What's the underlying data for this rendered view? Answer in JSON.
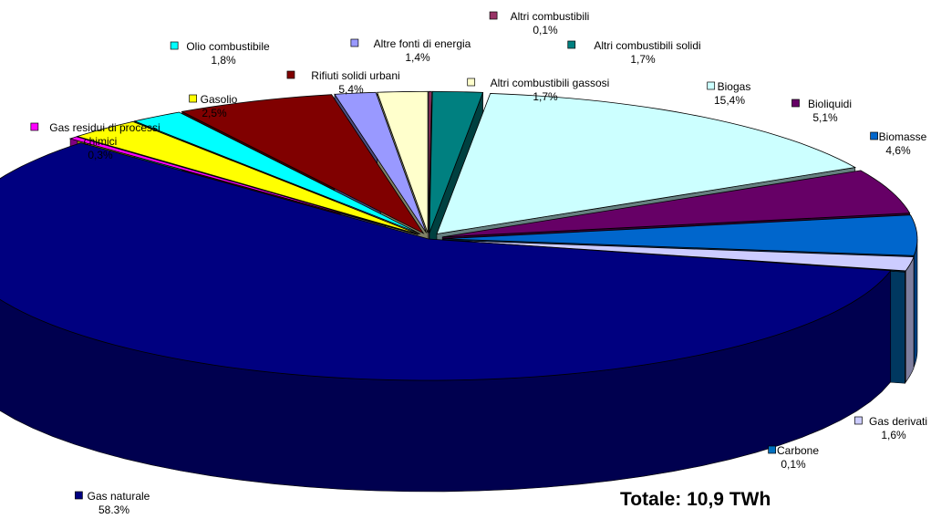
{
  "chart_data": {
    "type": "pie",
    "total_label": "Totale: 10,9 TWh",
    "slices": [
      {
        "name": "Altri combustibili",
        "value_label": "0,1%",
        "value": 0.1,
        "color": "#993366"
      },
      {
        "name": "Altri combustibili solidi",
        "value_label": "1,7%",
        "value": 1.7,
        "color": "#008080"
      },
      {
        "name": "Biogas",
        "value_label": "15,4%",
        "value": 15.4,
        "color": "#CCFFFF"
      },
      {
        "name": "Bioliquidi",
        "value_label": "5,1%",
        "value": 5.1,
        "color": "#660066"
      },
      {
        "name": "Biomasse",
        "value_label": "4,6%",
        "value": 4.6,
        "color": "#0066CC"
      },
      {
        "name": "Gas derivati",
        "value_label": "1,6%",
        "value": 1.6,
        "color": "#CCCCFF"
      },
      {
        "name": "Carbone",
        "value_label": "0,1%",
        "value": 0.1,
        "color": "#0070C0"
      },
      {
        "name": "Gas naturale",
        "value_label": "58.3%",
        "value": 58.3,
        "color": "#000080"
      },
      {
        "name": "Gas residui di processi chimici",
        "value_label": "0,3%",
        "value": 0.3,
        "color": "#FF00FF"
      },
      {
        "name": "Gasolio",
        "value_label": "2,5%",
        "value": 2.5,
        "color": "#FFFF00"
      },
      {
        "name": "Olio combustibile",
        "value_label": "1,8%",
        "value": 1.8,
        "color": "#00FFFF"
      },
      {
        "name": "Rifiuti solidi urbani",
        "value_label": "5,4%",
        "value": 5.4,
        "color": "#800000"
      },
      {
        "name": "Altre fonti di energia",
        "value_label": "1,4%",
        "value": 1.4,
        "color": "#9999FF"
      },
      {
        "name": "Altri combustibili gassosi",
        "value_label": "1,7%",
        "value": 1.7,
        "color": "#FFFFCC"
      }
    ]
  }
}
